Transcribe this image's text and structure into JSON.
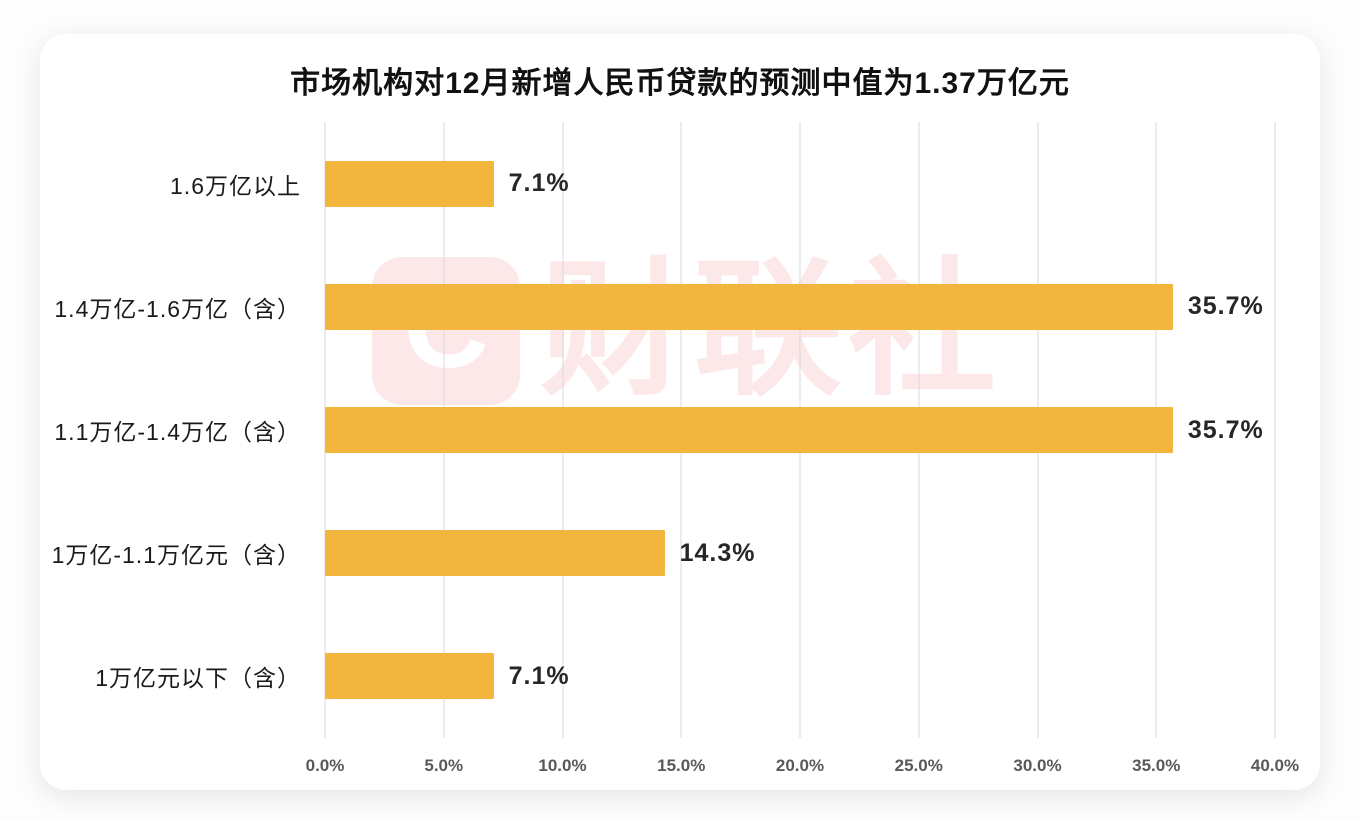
{
  "chart_data": {
    "type": "bar",
    "orientation": "horizontal",
    "title": "市场机构对12月新增人民币贷款的预测中值为1.37万亿元",
    "categories": [
      "1.6万亿以上",
      "1.4万亿-1.6万亿（含）",
      "1.1万亿-1.4万亿（含）",
      "1万亿-1.1万亿元（含）",
      "1万亿元以下（含）"
    ],
    "values": [
      7.1,
      35.7,
      35.7,
      14.3,
      7.1
    ],
    "value_labels": [
      "7.1%",
      "35.7%",
      "35.7%",
      "14.3%",
      "7.1%"
    ],
    "xlabel": "",
    "ylabel": "",
    "xlim": [
      0,
      40
    ],
    "x_ticks": [
      "0.0%",
      "5.0%",
      "10.0%",
      "15.0%",
      "20.0%",
      "25.0%",
      "30.0%",
      "35.0%",
      "40.0%"
    ],
    "grid": true,
    "legend": "none",
    "bar_color": "#F2B53D"
  },
  "watermark": {
    "logo_letter": "C",
    "text": "财联社",
    "color": "#E84C4C"
  },
  "colors": {
    "bar": "#F2B53D",
    "grid": "#D9D9D9",
    "title_text": "#111111",
    "value_text": "#262626",
    "tick_text": "#595959"
  }
}
